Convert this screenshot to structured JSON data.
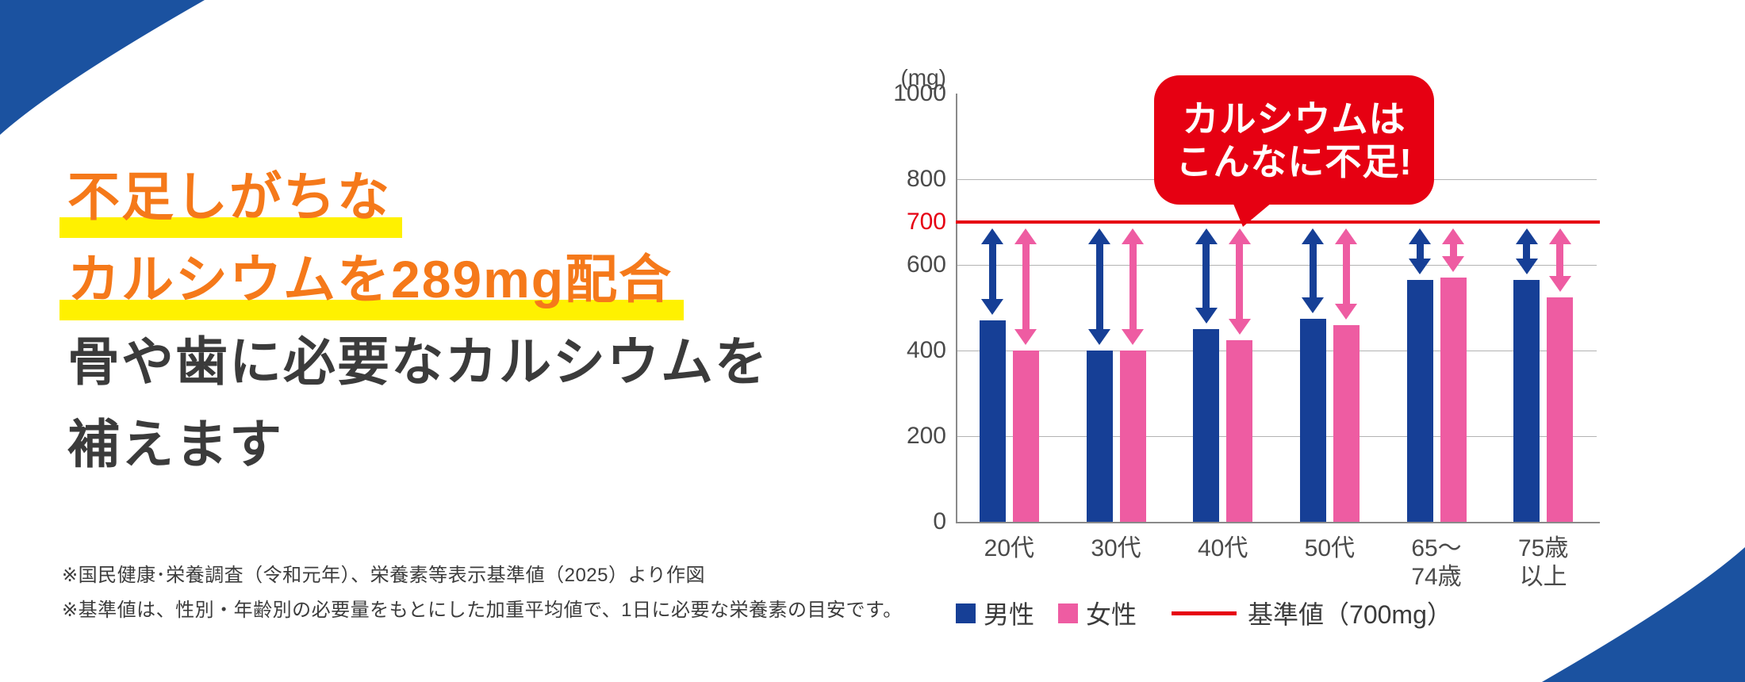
{
  "colors": {
    "corner_blue": "#1b52a0",
    "male_blue": "#163f96",
    "female_pink": "#ee5ca2",
    "red": "#e60012",
    "accent_orange": "#f5791a",
    "highlight_yellow": "#fff100",
    "dark_text": "#3b3b3b",
    "footnote_text": "#3c3c3c"
  },
  "headline": {
    "line1": "不足しがちな",
    "line2": "カルシウムを289mg配合",
    "line3": "骨や歯に必要なカルシウムを",
    "line4": "補えます"
  },
  "footnotes": {
    "note1": "※国民健康･栄養調査（令和元年）、栄養素等表示基準値（2025）より作図",
    "note2": "※基準値は、性別・年齢別の必要量をもとにした加重平均値で、1日に必要な栄養素の目安です。"
  },
  "callout": {
    "line1": "カルシウムは",
    "line2": "こんなに不足!"
  },
  "chart_data": {
    "type": "bar",
    "title": "",
    "unit_label": "(mg)",
    "categories": [
      "20代",
      "30代",
      "40代",
      "50代",
      "65～\n74歳",
      "75歳\n以上"
    ],
    "series": [
      {
        "name": "男性",
        "color": "#163f96",
        "values": [
          470,
          400,
          450,
          475,
          565,
          565
        ]
      },
      {
        "name": "女性",
        "color": "#ee5ca2",
        "values": [
          400,
          400,
          425,
          460,
          570,
          525
        ]
      }
    ],
    "reference_line": {
      "value": 700,
      "color": "#e60012",
      "label": "基準値（700mg）"
    },
    "y_ticks": [
      0,
      200,
      400,
      600,
      800,
      1000
    ],
    "ylim": [
      0,
      1000
    ],
    "grid": true,
    "gridline_values": [
      200,
      400,
      600,
      800
    ],
    "legend_position": "bottom",
    "annotation": "カルシウムは こんなに不足!"
  }
}
